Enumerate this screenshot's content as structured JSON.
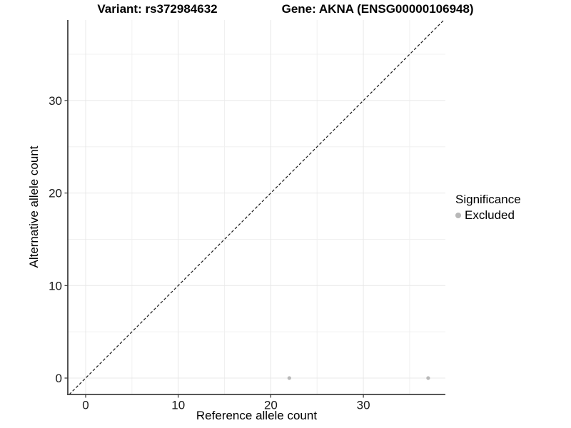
{
  "title": {
    "variant": "Variant: rs372984632",
    "gene": "Gene: AKNA (ENSG00000106948)"
  },
  "axes": {
    "x_label": "Reference allele count",
    "y_label": "Alternative allele count"
  },
  "legend": {
    "title": "Significance",
    "items": [
      {
        "label": "Excluded",
        "color": "#b8b8b8"
      }
    ]
  },
  "colors": {
    "background": "#ffffff",
    "grid_major": "#e8e8e8",
    "grid_minor": "#f0f0f0",
    "axis_line": "#404040",
    "tick_mark": "#333333",
    "tick_label": "#1a1a1a",
    "dashed_line": "#1a1a1a",
    "point": "#b8b8b8"
  },
  "chart_data": {
    "type": "scatter",
    "title": "Variant: rs372984632   Gene: AKNA (ENSG00000106948)",
    "xlabel": "Reference allele count",
    "ylabel": "Alternative allele count",
    "xlim": [
      -1.9,
      38.9
    ],
    "ylim": [
      -1.8,
      38.7
    ],
    "x_ticks": [
      0,
      10,
      20,
      30
    ],
    "y_ticks": [
      0,
      10,
      20,
      30
    ],
    "minor_ticks": [
      5,
      15,
      25,
      35
    ],
    "grid": true,
    "legend_position": "right",
    "point_color": "#b8b8b8",
    "point_radius": 2.6,
    "series": [
      {
        "name": "Excluded",
        "points": [
          {
            "x": 22,
            "y": 0
          },
          {
            "x": 37,
            "y": 0
          }
        ]
      }
    ],
    "reference_line": {
      "type": "identity",
      "slope": 1,
      "intercept": 0,
      "style": "dashed",
      "color": "#1a1a1a"
    }
  }
}
